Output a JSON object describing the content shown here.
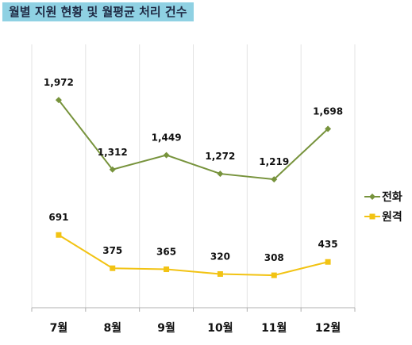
{
  "chart_data": {
    "type": "line",
    "title": "월별 지원 현황 및 월평균 처리 건수",
    "categories": [
      "7월",
      "8월",
      "9월",
      "10월",
      "11월",
      "12월"
    ],
    "series": [
      {
        "name": "전화",
        "values": [
          1972,
          1312,
          1449,
          1272,
          1219,
          1698
        ],
        "labels": [
          "1,972",
          "1,312",
          "1,449",
          "1,272",
          "1,219",
          "1,698"
        ],
        "color": "#77933c",
        "marker": "diamond"
      },
      {
        "name": "원격",
        "values": [
          691,
          375,
          365,
          320,
          308,
          435
        ],
        "labels": [
          "691",
          "375",
          "365",
          "320",
          "308",
          "435"
        ],
        "color": "#f2c313",
        "marker": "square"
      }
    ],
    "ylim": [
      0,
      2500
    ],
    "xlabel": "",
    "ylabel": "",
    "grid": "vertical",
    "legend": "right"
  }
}
